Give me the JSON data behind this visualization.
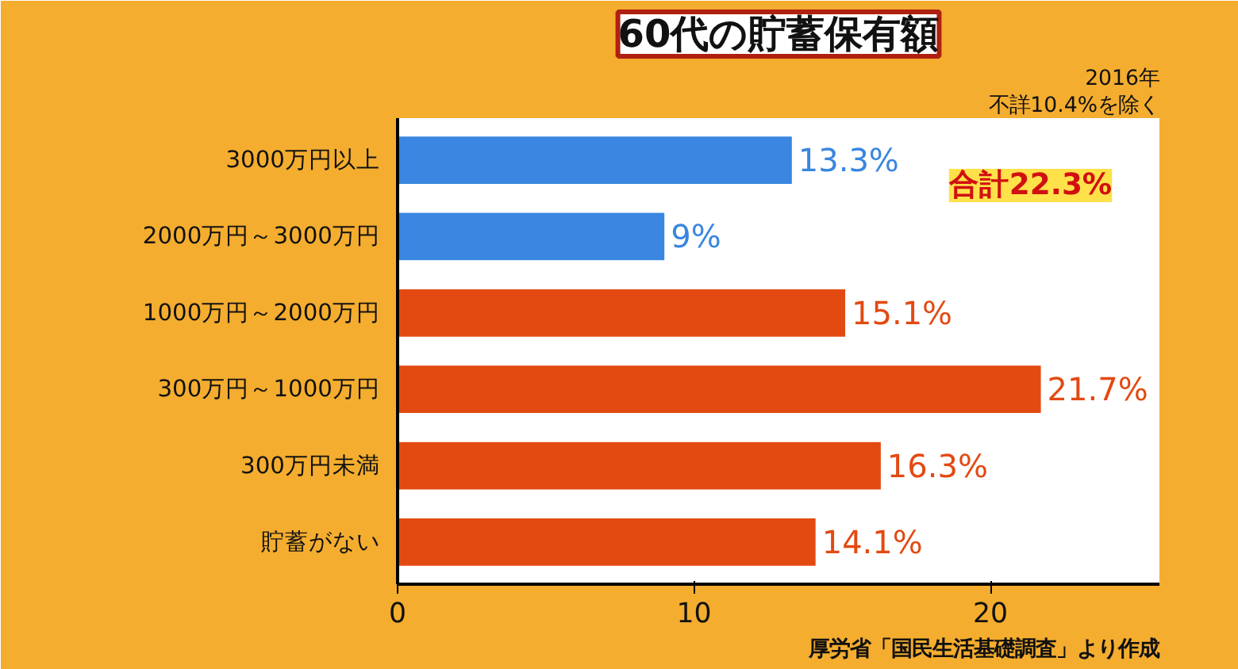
{
  "chart_data": {
    "type": "bar",
    "orientation": "horizontal",
    "title": "60代の貯蓄保有額",
    "categories": [
      "3000万円以上",
      "2000万円～3000万円",
      "1000万円～2000万円",
      "300万円～1000万円",
      "300万円未満",
      "貯蓄がない"
    ],
    "values": [
      13.3,
      9,
      15.1,
      21.7,
      16.3,
      14.1
    ],
    "value_labels": [
      "13.3%",
      "9%",
      "15.1%",
      "21.7%",
      "16.3%",
      "14.1%"
    ],
    "colors": [
      "#3a86e0",
      "#3a86e0",
      "#e24a12",
      "#e24a12",
      "#e24a12",
      "#e24a12"
    ],
    "xlim": [
      0,
      25.7
    ],
    "xticks": [
      0,
      10,
      20
    ],
    "grid": false,
    "annotations": [
      "2016年",
      "不詳10.4%を除く",
      "合計22.3%",
      "厚労省「国民生活基礎調査」より作成"
    ]
  }
}
